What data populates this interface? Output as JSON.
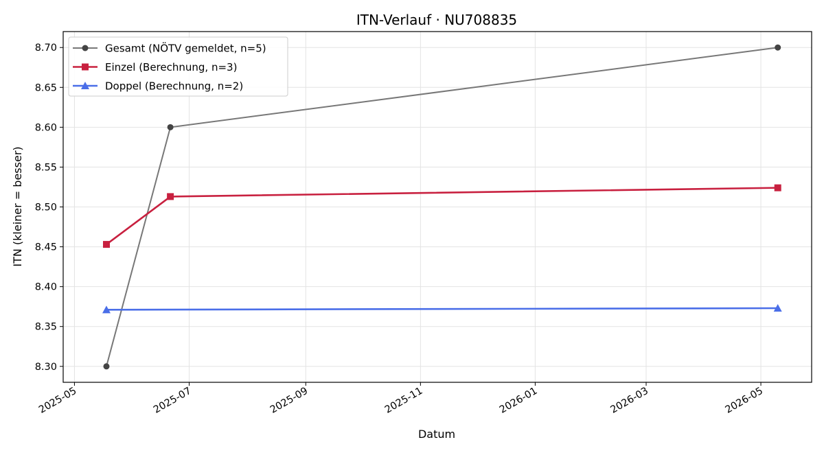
{
  "chart_data": {
    "type": "line",
    "title": "ITN-Verlauf · NU708835",
    "xlabel": "Datum",
    "ylabel": "ITN  (kleiner = besser)",
    "x_type": "date",
    "xlim": [
      "2025-04-25",
      "2026-05-28"
    ],
    "ylim": [
      8.28,
      8.72
    ],
    "x_ticks": [
      "2025-05-01",
      "2025-07-01",
      "2025-09-01",
      "2025-11-01",
      "2026-01-01",
      "2026-03-01",
      "2026-05-01"
    ],
    "x_tick_labels": [
      "2025-05",
      "2025-07",
      "2025-09",
      "2025-11",
      "2026-01",
      "2026-03",
      "2026-05"
    ],
    "y_ticks": [
      8.3,
      8.35,
      8.4,
      8.45,
      8.5,
      8.55,
      8.6,
      8.65,
      8.7
    ],
    "y_tick_labels": [
      "8.30",
      "8.35",
      "8.40",
      "8.45",
      "8.50",
      "8.55",
      "8.60",
      "8.65",
      "8.70"
    ],
    "grid": true,
    "legend": "top-left",
    "series": [
      {
        "name": "Gesamt (NÖTV gemeldet, n=5)",
        "color": "#777777",
        "marker_color": "#444444",
        "marker": "circle",
        "points": [
          {
            "x": "2025-05-18",
            "y": 8.3
          },
          {
            "x": "2025-06-21",
            "y": 8.6
          },
          {
            "x": "2026-05-10",
            "y": 8.7
          }
        ]
      },
      {
        "name": "Einzel (Berechnung, n=3)",
        "color": "#c8203f",
        "marker_color": "#c8203f",
        "marker": "square",
        "points": [
          {
            "x": "2025-05-18",
            "y": 8.453
          },
          {
            "x": "2025-06-21",
            "y": 8.513
          },
          {
            "x": "2026-05-10",
            "y": 8.524
          }
        ]
      },
      {
        "name": "Doppel (Berechnung, n=2)",
        "color": "#4a6ee8",
        "marker_color": "#4a6ee8",
        "marker": "triangle",
        "points": [
          {
            "x": "2025-05-18",
            "y": 8.371
          },
          {
            "x": "2026-05-10",
            "y": 8.373
          }
        ]
      }
    ]
  }
}
